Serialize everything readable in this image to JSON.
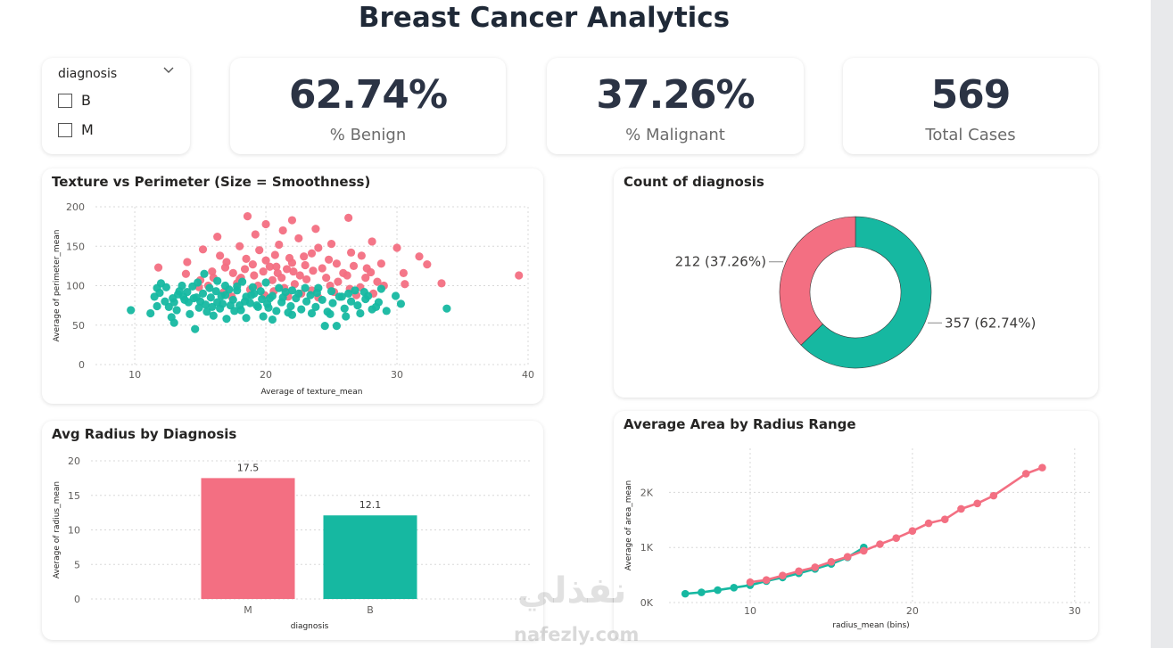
{
  "page": {
    "title": "Breast Cancer Analytics"
  },
  "slicer": {
    "title": "diagnosis",
    "options": [
      "B",
      "M"
    ]
  },
  "kpis": [
    {
      "value": "62.74%",
      "label": "% Benign"
    },
    {
      "value": "37.26%",
      "label": "% Malignant"
    },
    {
      "value": "569",
      "label": "Total Cases"
    }
  ],
  "watermark": {
    "arabic": "نفذلي",
    "latin": "nafezly.com"
  },
  "colors": {
    "malignant": "#f36f82",
    "benign": "#16b8a1",
    "grid": "#d8d8d8",
    "text": "#605e5c"
  },
  "chart_data": [
    {
      "id": "scatter",
      "type": "scatter",
      "title": "Texture vs Perimeter (Size = Smoothness)",
      "xlabel": "Average of texture_mean",
      "ylabel": "Average of perimeter_mean",
      "xlim": [
        7,
        40
      ],
      "ylim": [
        0,
        200
      ],
      "xticks": [
        10,
        20,
        30,
        40
      ],
      "yticks": [
        0,
        50,
        100,
        150,
        200
      ],
      "grid": true,
      "series": [
        {
          "key": "M",
          "color": "#f36f82",
          "points": [
            [
              18.6,
              188
            ],
            [
              22,
              183
            ],
            [
              26.3,
              186
            ],
            [
              20,
              178
            ],
            [
              21.3,
              170
            ],
            [
              23.8,
              172
            ],
            [
              19.2,
              165
            ],
            [
              22.5,
              160
            ],
            [
              16.3,
              162
            ],
            [
              25,
              153
            ],
            [
              28.1,
              156
            ],
            [
              21,
              152
            ],
            [
              18,
              150
            ],
            [
              24,
              148
            ],
            [
              30,
              148
            ],
            [
              15.2,
              146
            ],
            [
              19.5,
              145
            ],
            [
              26.5,
              142
            ],
            [
              23.5,
              141
            ],
            [
              16.5,
              138
            ],
            [
              20.7,
              139
            ],
            [
              22.9,
              137
            ],
            [
              27.3,
              138
            ],
            [
              21.8,
              135
            ],
            [
              18.5,
              134
            ],
            [
              24.8,
              133
            ],
            [
              31.7,
              137
            ],
            [
              14,
              130
            ],
            [
              20,
              132
            ],
            [
              17,
              130
            ],
            [
              22,
              129
            ],
            [
              25.4,
              128
            ],
            [
              28.8,
              128
            ],
            [
              32.3,
              127
            ],
            [
              19,
              127
            ],
            [
              23,
              126
            ],
            [
              26.7,
              125
            ],
            [
              16.9,
              123
            ],
            [
              20.3,
              124
            ],
            [
              18.4,
              121
            ],
            [
              21.6,
              121
            ],
            [
              24.3,
              122
            ],
            [
              27.7,
              122
            ],
            [
              11.8,
              123
            ],
            [
              15.9,
              118
            ],
            [
              19.8,
              118
            ],
            [
              23.6,
              119
            ],
            [
              28,
              117
            ],
            [
              17.5,
              116
            ],
            [
              20.9,
              116
            ],
            [
              25.9,
              116
            ],
            [
              30.5,
              116
            ],
            [
              13.9,
              115
            ],
            [
              19.1,
              113
            ],
            [
              22.6,
              113
            ],
            [
              26.2,
              113
            ],
            [
              39.3,
              113
            ],
            [
              16,
              110
            ],
            [
              18.1,
              110
            ],
            [
              21.2,
              110
            ],
            [
              24.6,
              110
            ],
            [
              27.6,
              110
            ],
            [
              33.4,
              103
            ],
            [
              30.6,
              102
            ],
            [
              15,
              107
            ],
            [
              20.5,
              107
            ],
            [
              23.1,
              108
            ],
            [
              25.5,
              105
            ],
            [
              28.5,
              105
            ],
            [
              17.8,
              103
            ],
            [
              22.2,
              102
            ],
            [
              19.4,
              100
            ],
            [
              24.9,
              100
            ],
            [
              27.2,
              98
            ],
            [
              21.4,
              97
            ],
            [
              26.4,
              96
            ],
            [
              18.8,
              95
            ],
            [
              23.5,
              94
            ],
            [
              16.8,
              92
            ],
            [
              20.6,
              93
            ],
            [
              25.2,
              92
            ],
            [
              22.7,
              90
            ],
            [
              19.9,
              88
            ],
            [
              28.2,
              90
            ],
            [
              17.4,
              86
            ],
            [
              21.7,
              86
            ],
            [
              24,
              85
            ],
            [
              26.9,
              88
            ],
            [
              15.6,
              100
            ],
            [
              29,
              100
            ],
            [
              18,
              108
            ],
            [
              14.9,
              98
            ],
            [
              22.1,
              118
            ],
            [
              20.8,
              124
            ]
          ]
        },
        {
          "key": "B",
          "color": "#16b8a1",
          "points": [
            [
              9.7,
              69
            ],
            [
              11.7,
              74
            ],
            [
              12.6,
              73
            ],
            [
              13,
              79
            ],
            [
              13.3,
              89
            ],
            [
              14,
              92
            ],
            [
              14.5,
              84
            ],
            [
              15,
              80
            ],
            [
              15.4,
              76
            ],
            [
              15.8,
              85
            ],
            [
              16.2,
              93
            ],
            [
              16.5,
              71
            ],
            [
              16.9,
              88
            ],
            [
              17.3,
              75
            ],
            [
              17.5,
              82
            ],
            [
              17.8,
              94
            ],
            [
              18.1,
              69
            ],
            [
              18.5,
              86
            ],
            [
              18.8,
              78
            ],
            [
              19.1,
              90
            ],
            [
              19.4,
              73
            ],
            [
              19.7,
              83
            ],
            [
              20.1,
              77
            ],
            [
              20.5,
              87
            ],
            [
              20.8,
              68
            ],
            [
              21.2,
              79
            ],
            [
              21.5,
              92
            ],
            [
              21.9,
              74
            ],
            [
              22.3,
              84
            ],
            [
              22.7,
              70
            ],
            [
              23.1,
              80
            ],
            [
              23.4,
              88
            ],
            [
              23.8,
              73
            ],
            [
              24.3,
              82
            ],
            [
              24.7,
              67
            ],
            [
              25.1,
              78
            ],
            [
              25.6,
              86
            ],
            [
              26,
              71
            ],
            [
              26.5,
              80
            ],
            [
              27,
              75
            ],
            [
              27.6,
              83
            ],
            [
              28.1,
              70
            ],
            [
              28.6,
              79
            ],
            [
              29.2,
              68
            ],
            [
              33.8,
              71
            ],
            [
              24.5,
              49
            ],
            [
              25.4,
              49
            ],
            [
              20.5,
              57
            ],
            [
              18.5,
              59
            ],
            [
              16,
              62
            ],
            [
              14.2,
              64
            ],
            [
              13,
              53
            ],
            [
              12.8,
              60
            ],
            [
              14.6,
              45
            ],
            [
              11.2,
              65
            ],
            [
              15.5,
              67
            ],
            [
              17,
              58
            ],
            [
              19.8,
              61
            ],
            [
              22,
              63
            ],
            [
              23.5,
              65
            ],
            [
              21,
              97
            ],
            [
              19,
              98
            ],
            [
              17.8,
              99
            ],
            [
              16.9,
              100
            ],
            [
              15.7,
              97
            ],
            [
              14.4,
              99
            ],
            [
              13.6,
              100
            ],
            [
              12.4,
              98
            ],
            [
              11.7,
              97
            ],
            [
              12,
              103
            ],
            [
              13.4,
              93
            ],
            [
              14.8,
              104
            ],
            [
              16.3,
              106
            ],
            [
              18.2,
              105
            ],
            [
              20,
              104
            ],
            [
              26.8,
              94
            ],
            [
              27.5,
              92
            ],
            [
              28.8,
              96
            ],
            [
              29.9,
              87
            ],
            [
              26.3,
              90
            ],
            [
              25,
              93
            ],
            [
              24,
              97
            ],
            [
              23,
              97
            ],
            [
              22,
              94
            ],
            [
              21.3,
              85
            ],
            [
              20.3,
              84
            ],
            [
              19.3,
              75
            ],
            [
              18.4,
              80
            ],
            [
              17.6,
              68
            ],
            [
              16.7,
              77
            ],
            [
              15.9,
              73
            ],
            [
              14.9,
              72
            ],
            [
              14.1,
              79
            ],
            [
              13.7,
              86
            ],
            [
              12.9,
              84
            ],
            [
              12.3,
              80
            ],
            [
              11.5,
              86
            ],
            [
              11.9,
              91
            ],
            [
              13.2,
              69
            ],
            [
              15.2,
              90
            ],
            [
              16.6,
              87
            ],
            [
              17.2,
              95
            ],
            [
              18.9,
              88
            ],
            [
              19.6,
              93
            ],
            [
              22.5,
              90
            ],
            [
              23.9,
              91
            ],
            [
              25.8,
              86
            ],
            [
              27.8,
              87
            ],
            [
              28.4,
              73
            ],
            [
              30.3,
              77
            ],
            [
              27.2,
              65
            ],
            [
              26.1,
              61
            ],
            [
              24.9,
              64
            ],
            [
              21.7,
              66
            ],
            [
              20.2,
              72
            ],
            [
              18,
              75
            ],
            [
              16.3,
              79
            ],
            [
              14.7,
              85
            ],
            [
              13.8,
              82
            ],
            [
              15.3,
              115
            ]
          ]
        }
      ]
    },
    {
      "id": "donut",
      "type": "pie",
      "title": "Count of diagnosis",
      "categories": [
        "B",
        "M"
      ],
      "values": [
        357,
        212
      ],
      "labels": [
        "357 (62.74%)",
        "212 (37.26%)"
      ],
      "colors": [
        "#16b8a1",
        "#f36f82"
      ]
    },
    {
      "id": "bar",
      "type": "bar",
      "title": "Avg Radius by Diagnosis",
      "xlabel": "diagnosis",
      "ylabel": "Average of radius_mean",
      "categories": [
        "M",
        "B"
      ],
      "values": [
        17.5,
        12.1
      ],
      "data_labels": [
        "17.5",
        "12.1"
      ],
      "colors": [
        "#f36f82",
        "#16b8a1"
      ],
      "ylim": [
        0,
        20
      ],
      "yticks": [
        0,
        5,
        10,
        15,
        20
      ],
      "grid": true
    },
    {
      "id": "line",
      "type": "line",
      "title": "Average Area by Radius Range",
      "xlabel": "radius_mean (bins)",
      "ylabel": "Average of area_mean",
      "xlim": [
        5,
        31
      ],
      "ylim": [
        0,
        2800
      ],
      "xticks": [
        10,
        20,
        30
      ],
      "xtick_labels": [
        "10",
        "20",
        "30"
      ],
      "yticks": [
        0,
        1000,
        2000
      ],
      "ytick_labels": [
        "0K",
        "1K",
        "2K"
      ],
      "grid": true,
      "series": [
        {
          "key": "B",
          "color": "#16b8a1",
          "points": [
            [
              6,
              160
            ],
            [
              7,
              185
            ],
            [
              8,
              225
            ],
            [
              9,
              270
            ],
            [
              10,
              315
            ],
            [
              11,
              390
            ],
            [
              12,
              455
            ],
            [
              13,
              530
            ],
            [
              14,
              610
            ],
            [
              15,
              700
            ],
            [
              16,
              820
            ],
            [
              17,
              1000
            ]
          ]
        },
        {
          "key": "M",
          "color": "#f36f82",
          "points": [
            [
              10,
              370
            ],
            [
              11,
              410
            ],
            [
              12,
              490
            ],
            [
              13,
              570
            ],
            [
              14,
              640
            ],
            [
              15,
              740
            ],
            [
              16,
              830
            ],
            [
              17,
              940
            ],
            [
              18,
              1060
            ],
            [
              19,
              1170
            ],
            [
              20,
              1300
            ],
            [
              21,
              1440
            ],
            [
              22,
              1510
            ],
            [
              23,
              1700
            ],
            [
              24,
              1800
            ],
            [
              25,
              1940
            ],
            [
              27,
              2340
            ],
            [
              28,
              2450
            ]
          ]
        }
      ]
    }
  ]
}
